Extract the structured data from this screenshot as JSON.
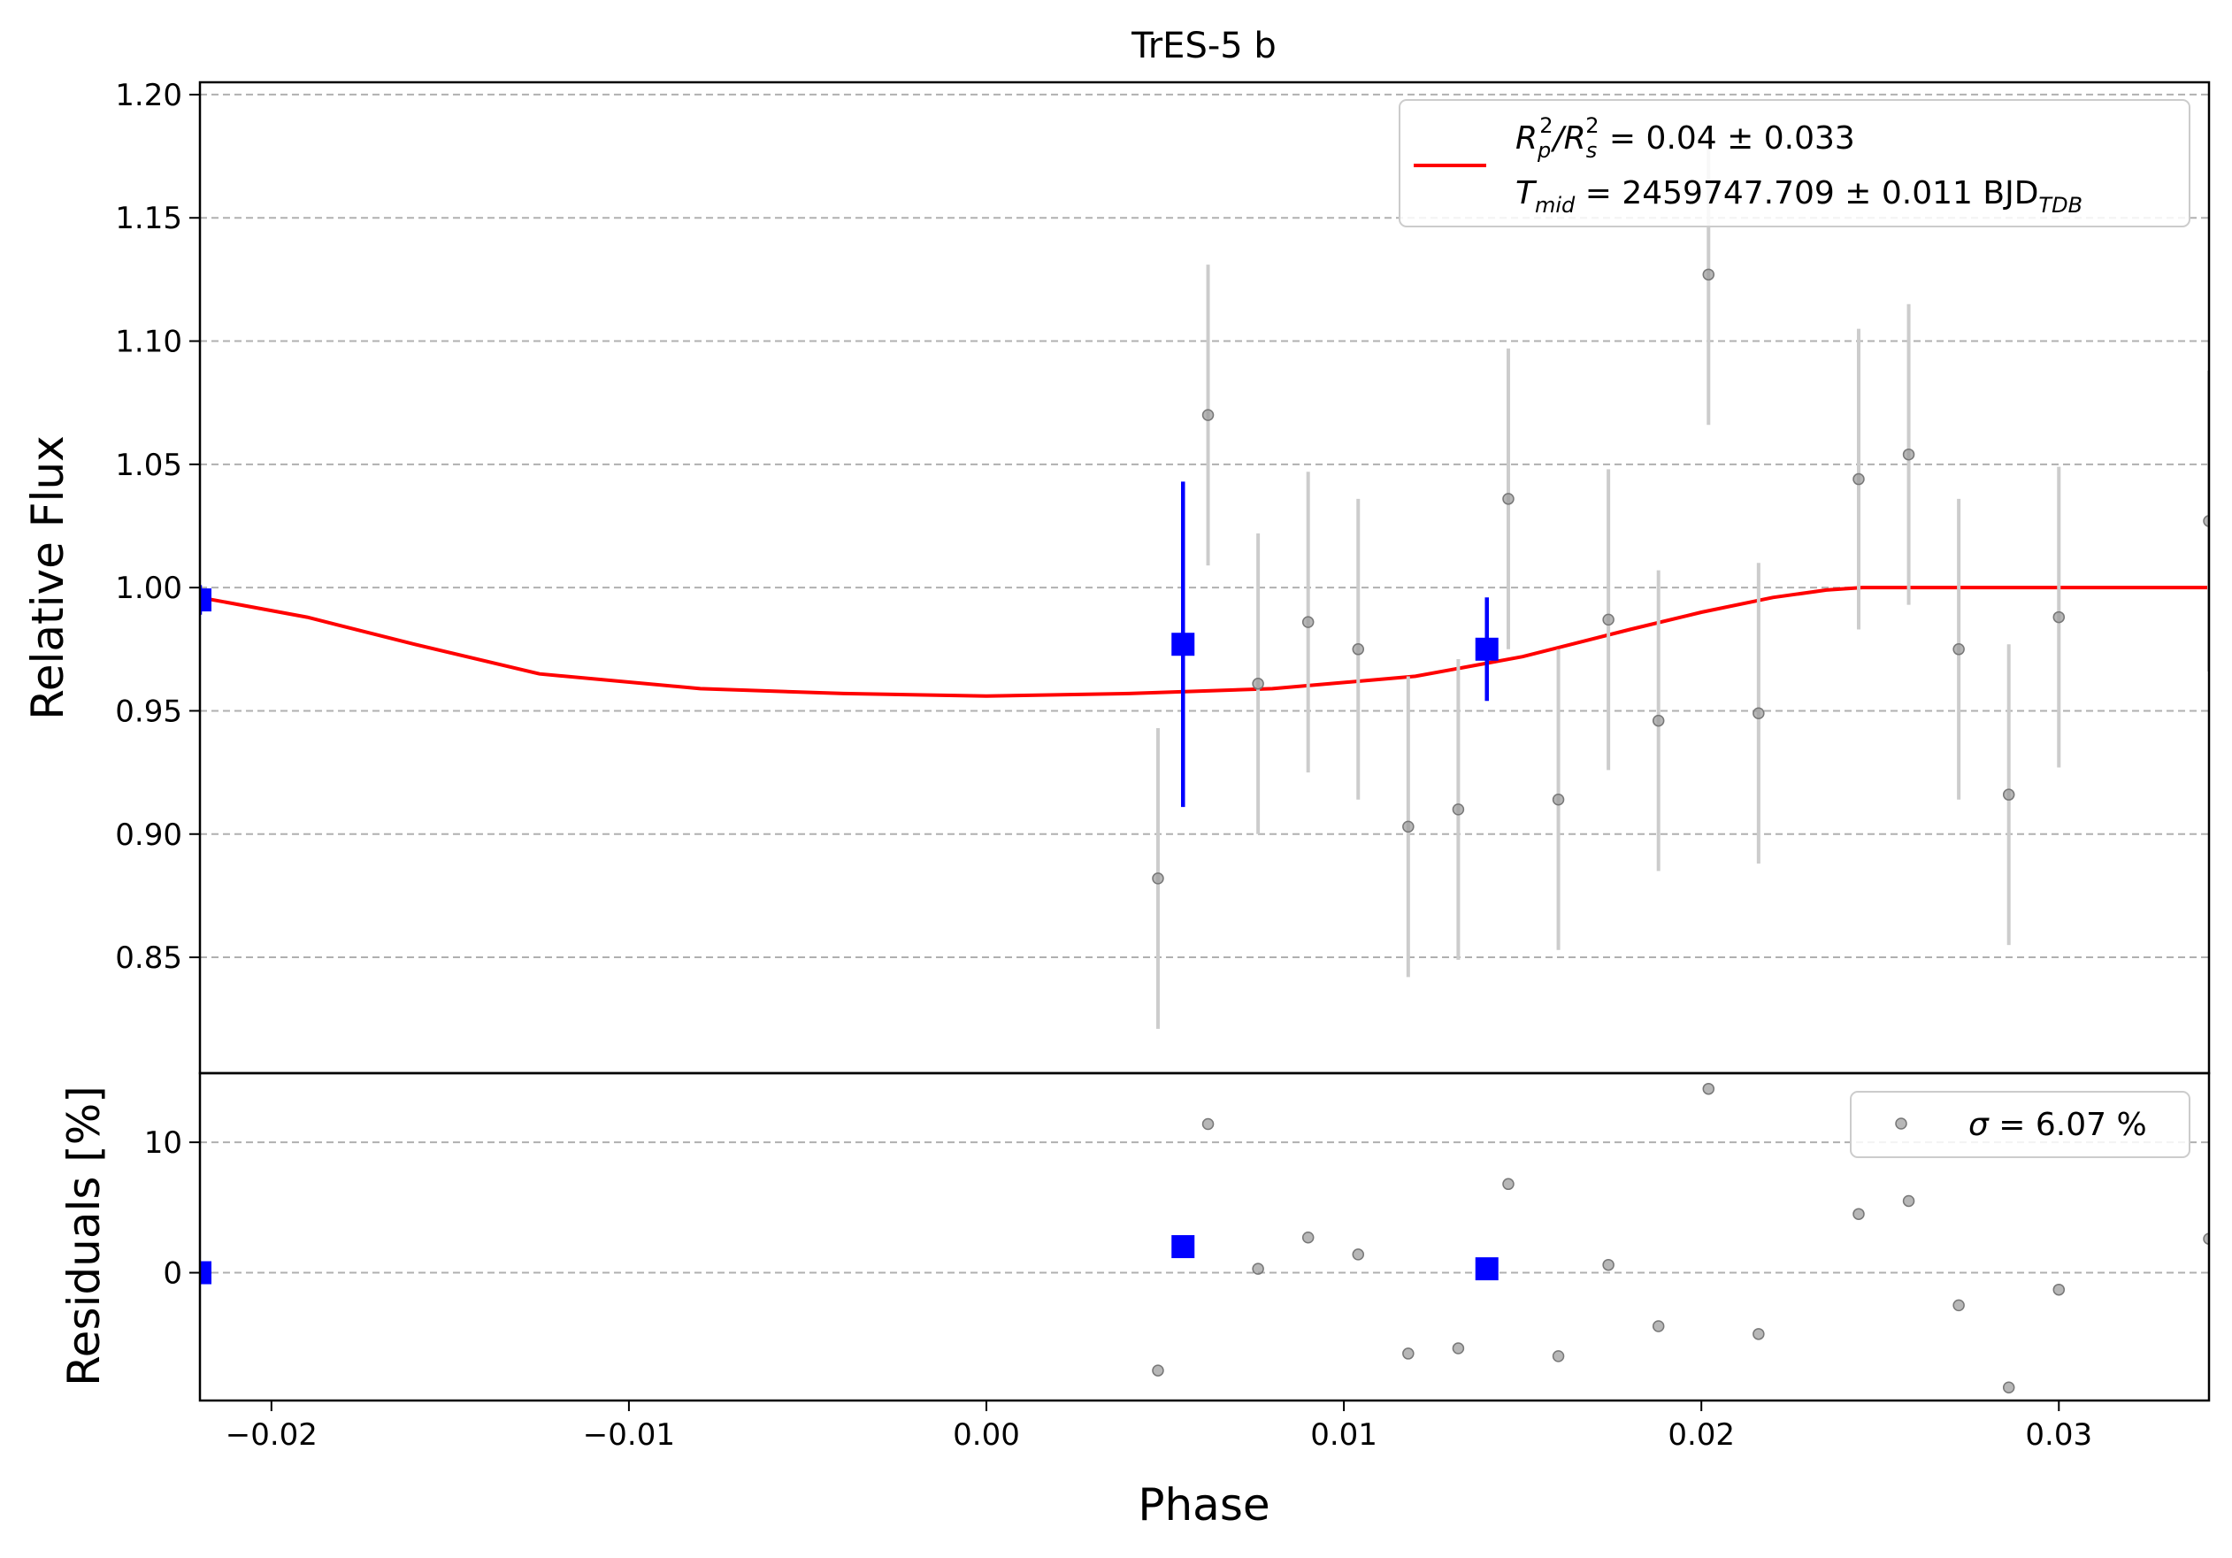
{
  "chart_data": [
    {
      "type": "scatter",
      "panel": "flux",
      "title": "TrES-5 b",
      "ylabel": "Relative Flux",
      "xlim": [
        -0.022,
        0.0342
      ],
      "ylim": [
        0.803,
        1.205
      ],
      "yticks": [
        "0.85",
        "0.90",
        "0.95",
        "1.00",
        "1.05",
        "1.10",
        "1.15",
        "1.20"
      ],
      "grid": "y-dashed",
      "legend": {
        "placement": "top-right",
        "entries": [
          {
            "line1": {
              "pre": "R",
              "sub": "p",
              "sup": "2",
              "mid": "/R",
              "sub2": "s",
              "sup2": "2",
              "post": " = 0.04 ± 0.033"
            },
            "line2": {
              "pre": "T",
              "sub": "mid",
              "post": " = 2459747.709 ± 0.011 BJD",
              "sub2": "TDB"
            }
          }
        ]
      },
      "series": [
        {
          "role": "raw",
          "color": "#999999",
          "errcolor": "#cccccc",
          "x": [
            0.0048,
            0.0062,
            0.0076,
            0.009,
            0.0104,
            0.0118,
            0.0132,
            0.0146,
            0.016,
            0.0174,
            0.0188,
            0.0202,
            0.0216,
            0.0244,
            0.0258,
            0.0272,
            0.0286,
            0.03,
            0.0342
          ],
          "y": [
            0.882,
            1.07,
            0.961,
            0.986,
            0.975,
            0.903,
            0.91,
            1.036,
            0.914,
            0.987,
            0.946,
            1.127,
            0.949,
            1.044,
            1.054,
            0.975,
            0.916,
            0.988,
            1.027
          ],
          "yerr": [
            0.061,
            0.061,
            0.061,
            0.061,
            0.061,
            0.061,
            0.061,
            0.061,
            0.061,
            0.061,
            0.061,
            0.061,
            0.061,
            0.061,
            0.061,
            0.061,
            0.061,
            0.061,
            0.061
          ]
        },
        {
          "role": "binned",
          "color": "#0000ff",
          "x": [
            -0.022,
            0.0055,
            0.014
          ],
          "y": [
            0.995,
            0.977,
            0.975
          ],
          "yerr": [
            0.006,
            0.066,
            0.021
          ]
        },
        {
          "role": "model",
          "color": "#ff0000",
          "x": [
            -0.022,
            -0.019,
            -0.016,
            -0.0125,
            -0.008,
            -0.004,
            0.0,
            0.004,
            0.008,
            0.012,
            0.015,
            0.018,
            0.02,
            0.022,
            0.0235,
            0.0245,
            0.03,
            0.0342
          ],
          "y": [
            0.996,
            0.988,
            0.977,
            0.965,
            0.959,
            0.957,
            0.956,
            0.957,
            0.959,
            0.964,
            0.972,
            0.983,
            0.99,
            0.996,
            0.999,
            1.0,
            1.0,
            1.0
          ]
        }
      ]
    },
    {
      "type": "scatter",
      "panel": "residuals",
      "xlabel": "Phase",
      "ylabel": "Residuals [%]",
      "xlim": [
        -0.022,
        0.0342
      ],
      "ylim": [
        -9.8,
        15.3
      ],
      "yticks": [
        "0",
        "10"
      ],
      "xticks": [
        "−0.02",
        "−0.01",
        "0.00",
        "0.01",
        "0.02",
        "0.03"
      ],
      "grid": "y-dashed",
      "legend": {
        "placement": "top-right",
        "entries": [
          {
            "pre": "σ",
            "post": " = 6.07 %"
          }
        ]
      },
      "series": [
        {
          "role": "raw",
          "color": "#999999",
          "x": [
            0.0048,
            0.0062,
            0.0076,
            0.009,
            0.0104,
            0.0118,
            0.0132,
            0.0146,
            0.016,
            0.0174,
            0.0188,
            0.0202,
            0.0216,
            0.0244,
            0.0258,
            0.0272,
            0.0286,
            0.03,
            0.0342
          ],
          "y": [
            -7.5,
            11.4,
            0.3,
            2.7,
            1.4,
            -6.2,
            -5.8,
            6.8,
            -6.4,
            0.6,
            -4.1,
            14.1,
            -4.7,
            4.5,
            5.5,
            -2.5,
            -8.8,
            -1.3,
            2.6
          ]
        },
        {
          "role": "binned",
          "color": "#0000ff",
          "x": [
            -0.022,
            0.0055,
            0.014
          ],
          "y": [
            0.0,
            2.0,
            0.3
          ]
        }
      ]
    }
  ]
}
